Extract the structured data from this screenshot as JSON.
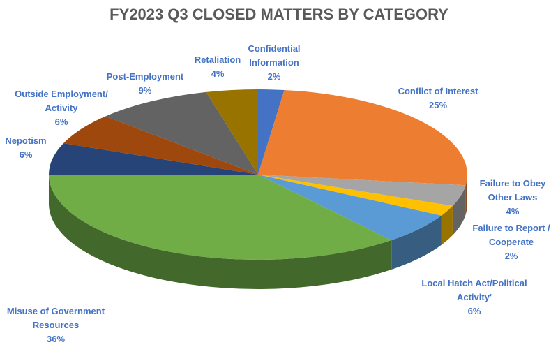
{
  "chart_data": {
    "type": "pie",
    "title": "FY2023 Q3 CLOSED MATTERS BY CATEGORY",
    "categories": [
      "Confidential Information",
      "Conflict of Interest",
      "Failure to Obey Other Laws",
      "Failure to Report / Cooperate",
      "Local Hatch Act/Political Activity'",
      "Misuse of Government Resources",
      "Nepotism",
      "Outside Employment/ Activity",
      "Post-Employment",
      "Retaliation"
    ],
    "values": [
      2,
      25,
      4,
      2,
      6,
      36,
      6,
      6,
      9,
      4
    ],
    "value_labels": [
      "2%",
      "25%",
      "4%",
      "2%",
      "6%",
      "36%",
      "6%",
      "6%",
      "9%",
      "4%"
    ],
    "colors": [
      "#4472c4",
      "#ed7d31",
      "#a5a5a5",
      "#ffc000",
      "#5b9bd5",
      "#70ad47",
      "#264478",
      "#9e480e",
      "#636363",
      "#997300"
    ]
  }
}
